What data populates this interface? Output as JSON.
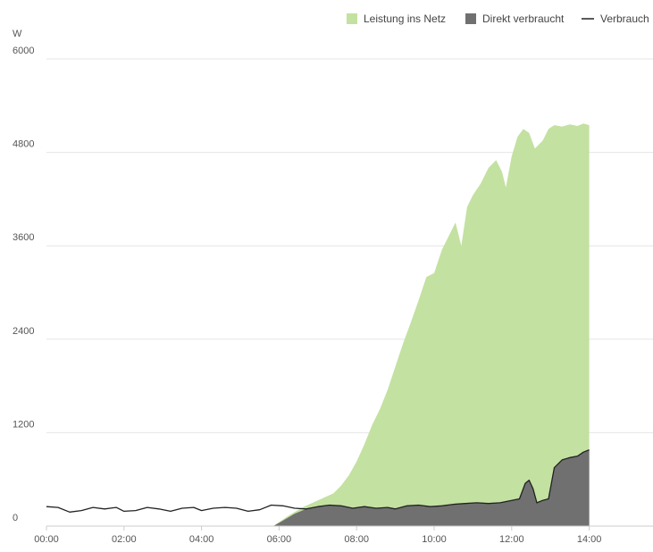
{
  "chart_data": {
    "type": "area",
    "y_unit": "W",
    "ylim": [
      0,
      6000
    ],
    "y_ticks": [
      "0",
      "1200",
      "2400",
      "3600",
      "4800",
      "6000"
    ],
    "x_range_hours": [
      0,
      15
    ],
    "x_ticks": [
      "00:00",
      "02:00",
      "04:00",
      "06:00",
      "08:00",
      "10:00",
      "12:00",
      "14:00"
    ],
    "grid": "horizontal",
    "legend_position": "top-right",
    "series": [
      {
        "name": "Leistung ins Netz",
        "kind": "area",
        "color": "#c3e1a1",
        "points": [
          [
            5.85,
            0
          ],
          [
            6.2,
            120
          ],
          [
            6.6,
            240
          ],
          [
            7.0,
            330
          ],
          [
            7.4,
            420
          ],
          [
            7.6,
            520
          ],
          [
            7.8,
            650
          ],
          [
            8.0,
            830
          ],
          [
            8.2,
            1050
          ],
          [
            8.4,
            1300
          ],
          [
            8.6,
            1500
          ],
          [
            8.8,
            1750
          ],
          [
            9.0,
            2050
          ],
          [
            9.2,
            2350
          ],
          [
            9.4,
            2620
          ],
          [
            9.6,
            2900
          ],
          [
            9.8,
            3200
          ],
          [
            10.0,
            3250
          ],
          [
            10.2,
            3550
          ],
          [
            10.4,
            3750
          ],
          [
            10.55,
            3900
          ],
          [
            10.7,
            3600
          ],
          [
            10.85,
            4100
          ],
          [
            11.0,
            4250
          ],
          [
            11.2,
            4400
          ],
          [
            11.4,
            4600
          ],
          [
            11.6,
            4700
          ],
          [
            11.75,
            4550
          ],
          [
            11.85,
            4350
          ],
          [
            12.0,
            4750
          ],
          [
            12.15,
            5000
          ],
          [
            12.3,
            5100
          ],
          [
            12.45,
            5050
          ],
          [
            12.6,
            4850
          ],
          [
            12.8,
            4950
          ],
          [
            12.95,
            5100
          ],
          [
            13.1,
            5150
          ],
          [
            13.3,
            5130
          ],
          [
            13.5,
            5160
          ],
          [
            13.7,
            5140
          ],
          [
            13.85,
            5170
          ],
          [
            14.0,
            5150
          ]
        ]
      },
      {
        "name": "Direkt verbraucht",
        "kind": "area",
        "color": "#707070",
        "points": [
          [
            5.85,
            0
          ],
          [
            6.1,
            70
          ],
          [
            6.4,
            160
          ],
          [
            6.7,
            220
          ],
          [
            7.0,
            250
          ],
          [
            7.3,
            270
          ],
          [
            7.6,
            260
          ],
          [
            7.9,
            230
          ],
          [
            8.2,
            250
          ],
          [
            8.5,
            230
          ],
          [
            8.8,
            240
          ],
          [
            9.0,
            220
          ],
          [
            9.3,
            260
          ],
          [
            9.6,
            270
          ],
          [
            9.9,
            250
          ],
          [
            10.2,
            260
          ],
          [
            10.5,
            280
          ],
          [
            10.8,
            290
          ],
          [
            11.1,
            300
          ],
          [
            11.4,
            290
          ],
          [
            11.7,
            300
          ],
          [
            12.0,
            330
          ],
          [
            12.2,
            350
          ],
          [
            12.35,
            550
          ],
          [
            12.45,
            590
          ],
          [
            12.55,
            480
          ],
          [
            12.65,
            300
          ],
          [
            12.8,
            330
          ],
          [
            12.95,
            350
          ],
          [
            13.1,
            750
          ],
          [
            13.3,
            850
          ],
          [
            13.5,
            880
          ],
          [
            13.7,
            900
          ],
          [
            13.85,
            950
          ],
          [
            14.0,
            980
          ]
        ]
      },
      {
        "name": "Verbrauch",
        "kind": "line",
        "color": "#222222",
        "points": [
          [
            0.0,
            250
          ],
          [
            0.3,
            240
          ],
          [
            0.6,
            180
          ],
          [
            0.9,
            200
          ],
          [
            1.2,
            240
          ],
          [
            1.5,
            220
          ],
          [
            1.8,
            240
          ],
          [
            2.0,
            190
          ],
          [
            2.3,
            200
          ],
          [
            2.6,
            240
          ],
          [
            2.9,
            220
          ],
          [
            3.2,
            190
          ],
          [
            3.5,
            230
          ],
          [
            3.8,
            240
          ],
          [
            4.0,
            200
          ],
          [
            4.3,
            230
          ],
          [
            4.6,
            240
          ],
          [
            4.9,
            230
          ],
          [
            5.2,
            190
          ],
          [
            5.5,
            210
          ],
          [
            5.8,
            270
          ],
          [
            6.1,
            260
          ],
          [
            6.4,
            230
          ],
          [
            6.7,
            220
          ],
          [
            7.0,
            250
          ],
          [
            7.3,
            270
          ],
          [
            7.6,
            260
          ],
          [
            7.9,
            230
          ],
          [
            8.2,
            250
          ],
          [
            8.5,
            230
          ],
          [
            8.8,
            240
          ],
          [
            9.0,
            220
          ],
          [
            9.3,
            260
          ],
          [
            9.6,
            270
          ],
          [
            9.9,
            250
          ],
          [
            10.2,
            260
          ],
          [
            10.5,
            280
          ],
          [
            10.8,
            290
          ],
          [
            11.1,
            300
          ],
          [
            11.4,
            290
          ],
          [
            11.7,
            300
          ],
          [
            12.0,
            330
          ],
          [
            12.2,
            350
          ],
          [
            12.35,
            550
          ],
          [
            12.45,
            590
          ],
          [
            12.55,
            480
          ],
          [
            12.65,
            300
          ],
          [
            12.8,
            330
          ],
          [
            12.95,
            350
          ],
          [
            13.1,
            750
          ],
          [
            13.3,
            850
          ],
          [
            13.5,
            880
          ],
          [
            13.7,
            900
          ],
          [
            13.85,
            950
          ],
          [
            14.0,
            980
          ]
        ]
      }
    ]
  }
}
